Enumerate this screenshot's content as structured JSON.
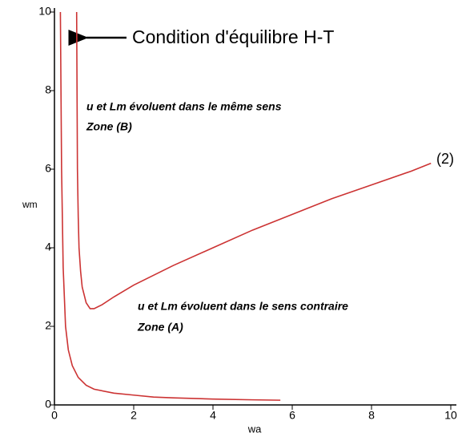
{
  "chart_data": {
    "type": "line",
    "annotations": [
      "Condition d'équilibre H-T",
      "u et Lm évoluent dans le même sens",
      "Zone (B)",
      "u et Lm évoluent dans le sens contraire",
      "Zone (A)",
      "(2)"
    ],
    "x_label": "wa",
    "y_label": "wm",
    "xlim": [
      0,
      10
    ],
    "ylim": [
      0,
      10
    ],
    "xticks": [
      0,
      2,
      4,
      6,
      8,
      10
    ],
    "yticks": [
      0,
      2,
      4,
      6,
      8,
      10
    ],
    "series": [
      {
        "color": "#cc3333",
        "x": [
          0.15,
          0.18,
          0.22,
          0.28,
          0.35,
          0.45,
          0.6,
          0.8,
          1.0,
          1.5,
          2.0,
          2.5,
          3.0,
          4.0,
          5.0,
          5.7
        ],
        "values": [
          10,
          6,
          3.5,
          2,
          1.4,
          1,
          0.7,
          0.5,
          0.4,
          0.3,
          0.25,
          0.2,
          0.18,
          0.15,
          0.13,
          0.12
        ]
      },
      {
        "color": "#cc3333",
        "x": [
          0.56,
          0.57,
          0.58,
          0.6,
          0.62,
          0.66,
          0.7,
          0.8,
          0.9,
          1.0,
          1.2,
          1.5,
          2.0,
          3.0,
          4.0,
          5.0,
          6.0,
          7.0,
          8.0,
          9.0,
          9.5
        ],
        "values": [
          10,
          8,
          6,
          4.8,
          4,
          3.4,
          3,
          2.6,
          2.45,
          2.45,
          2.55,
          2.75,
          3.05,
          3.55,
          4.0,
          4.45,
          4.85,
          5.25,
          5.6,
          5.95,
          6.15
        ]
      }
    ]
  }
}
